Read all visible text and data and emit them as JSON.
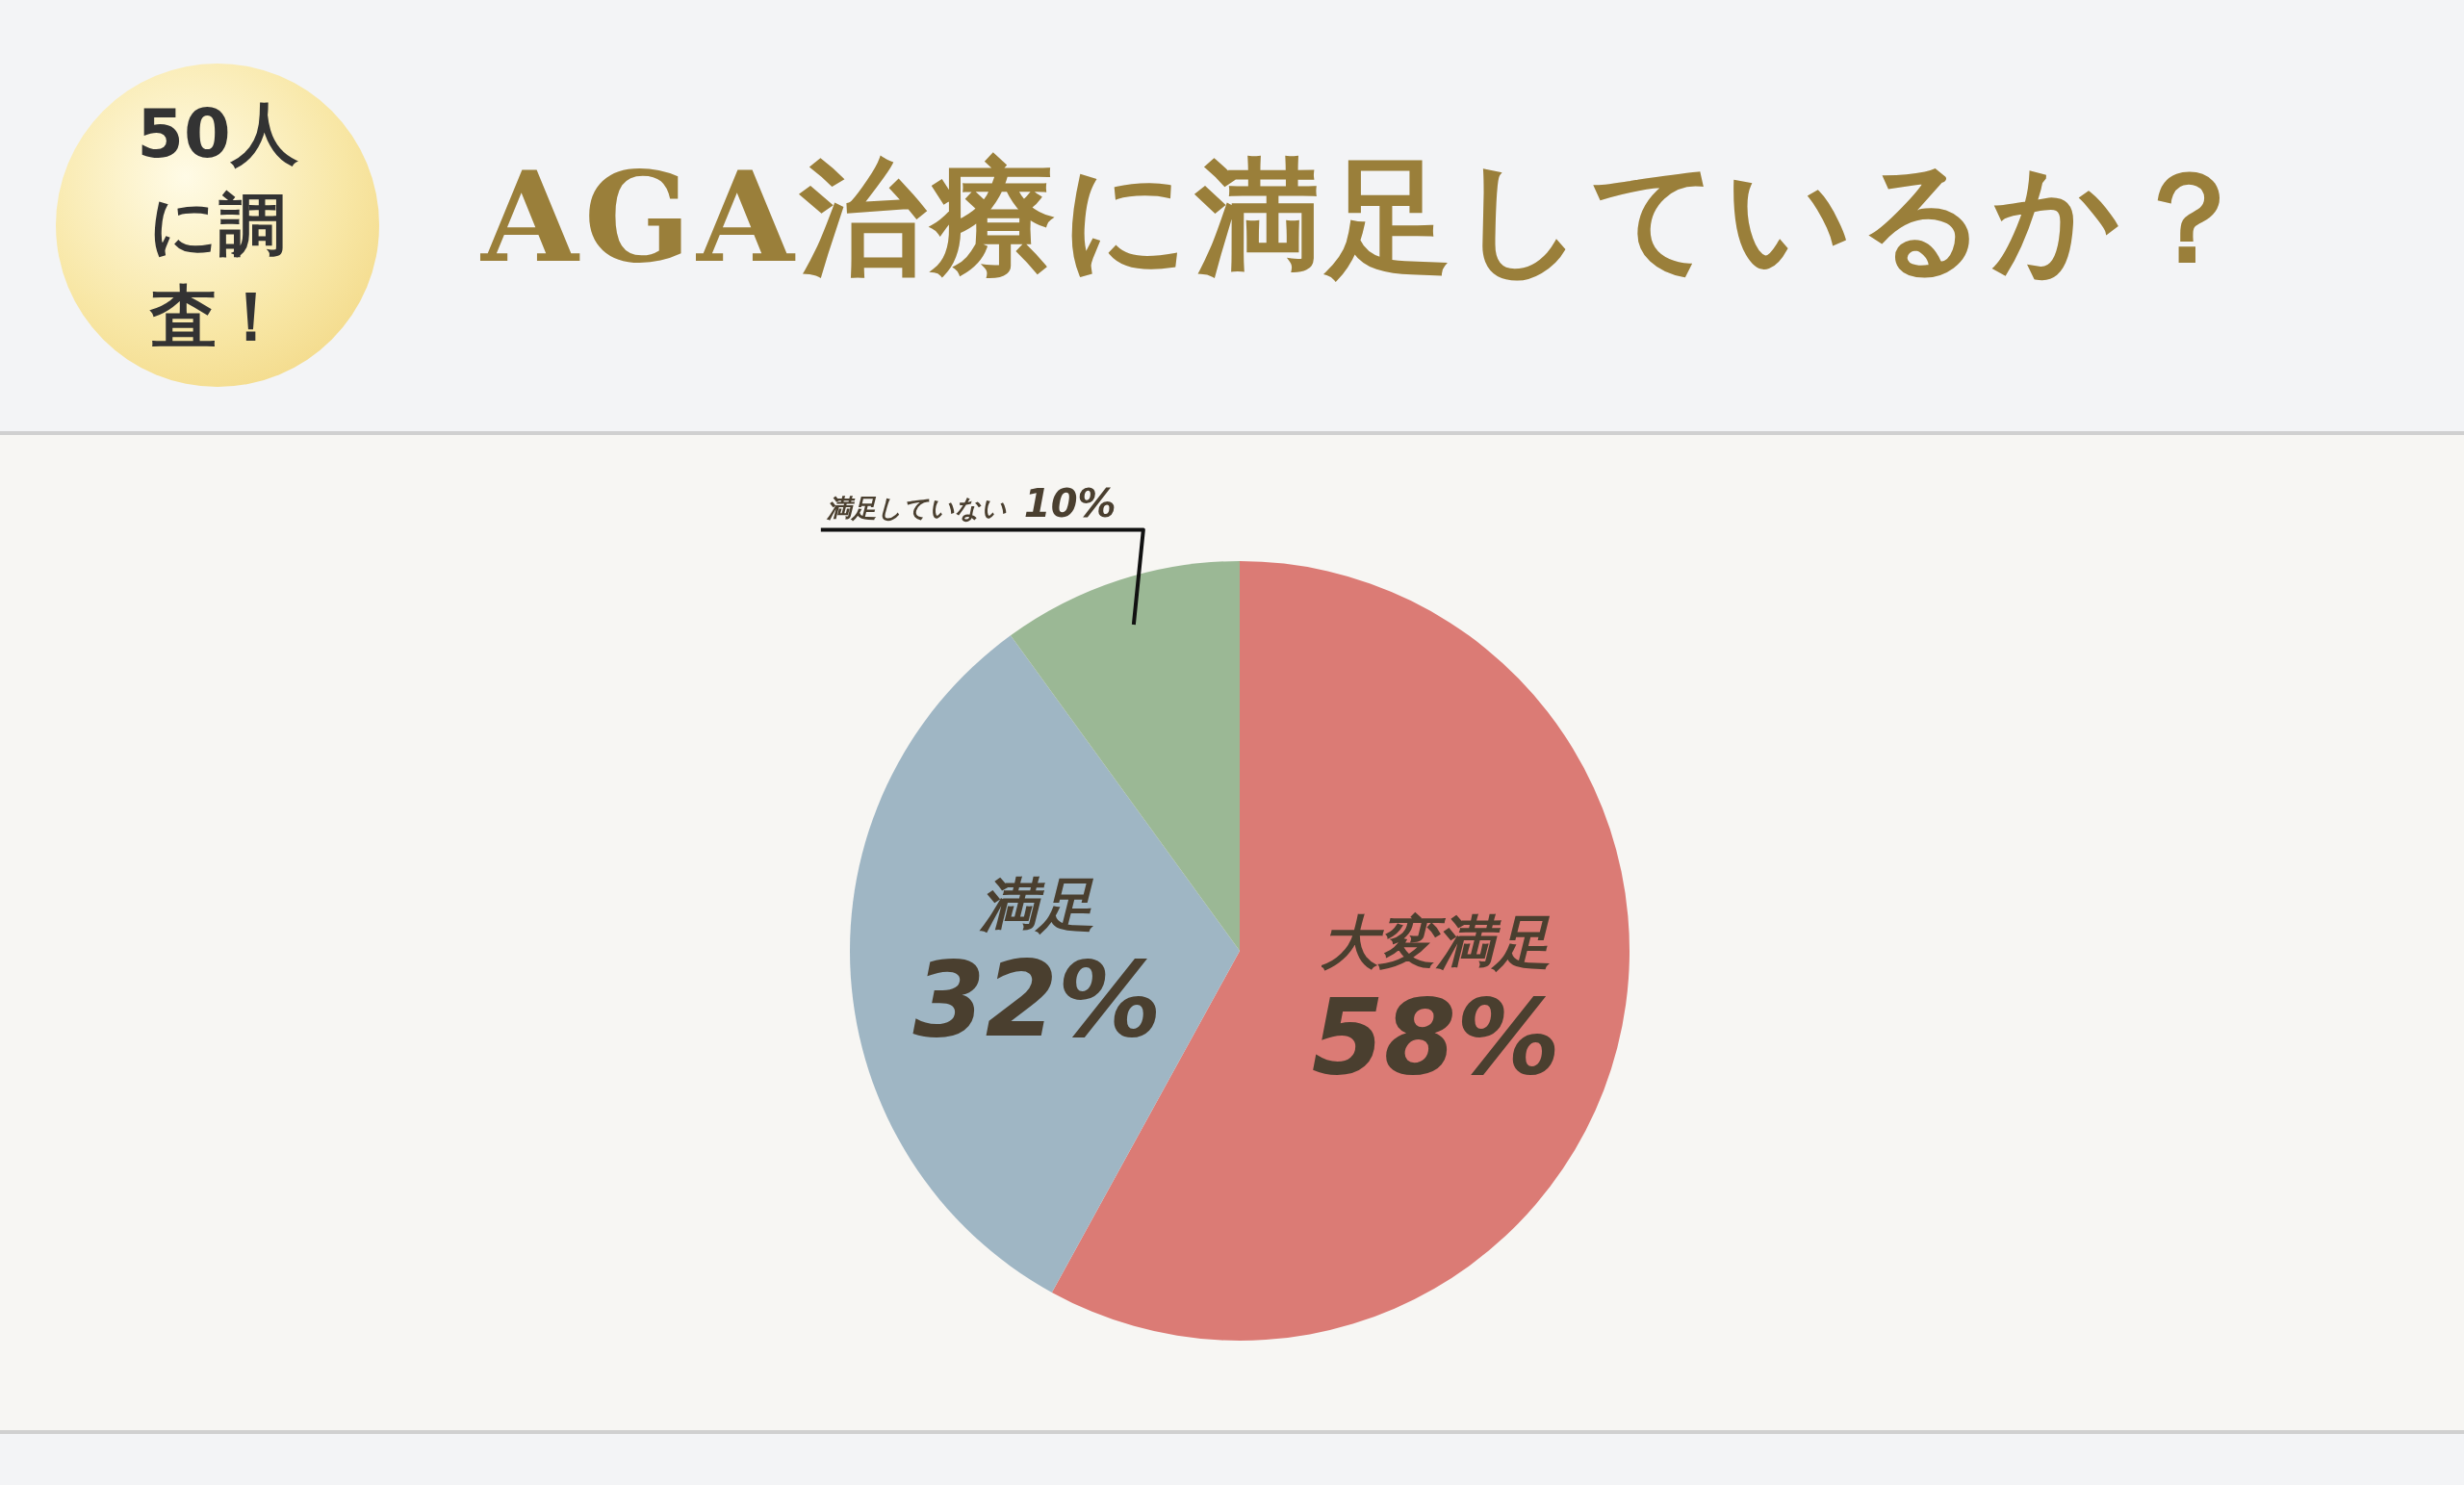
{
  "chart_data": {
    "type": "pie",
    "title": "AGA治療に満足しているか？",
    "categories": [
      "大変満足",
      "満足",
      "満足していない"
    ],
    "values": [
      58,
      32,
      10
    ],
    "value_labels": [
      "58%",
      "32%",
      "10%"
    ],
    "colors": [
      "#db7b75",
      "#9fb6c4",
      "#9bb895"
    ],
    "annotations": [
      "50人に調査！"
    ],
    "legend": false
  }
}
